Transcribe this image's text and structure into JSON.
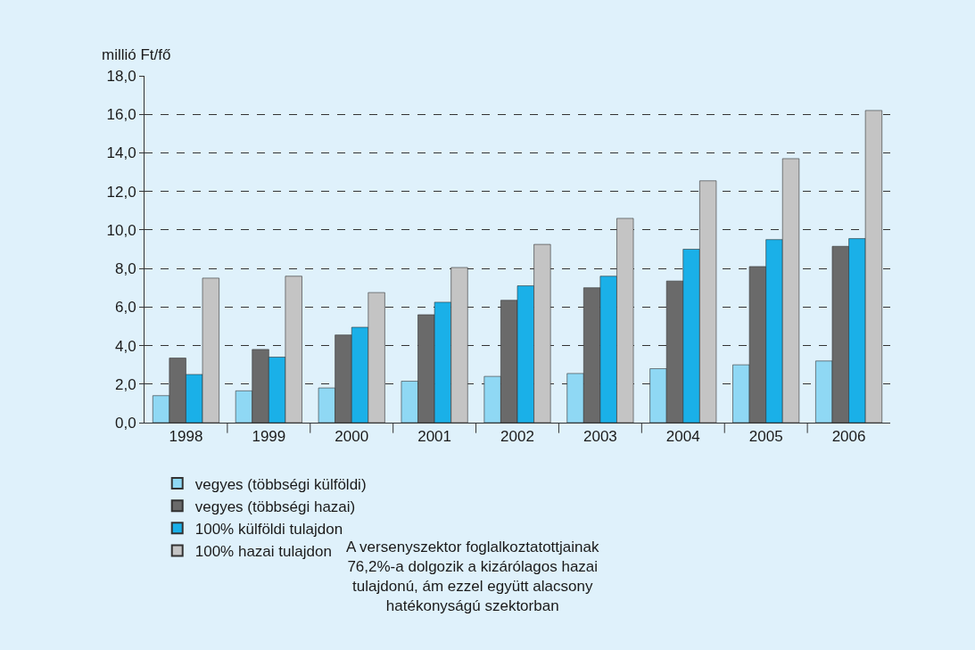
{
  "chart_data": {
    "type": "bar",
    "ylabel": "millió Ft/fő",
    "categories": [
      "1998",
      "1999",
      "2000",
      "2001",
      "2002",
      "2003",
      "2004",
      "2005",
      "2006"
    ],
    "series": [
      {
        "name": "vegyes (többségi külföldi)",
        "color": "#8fd8f4",
        "values": [
          1.4,
          1.65,
          1.8,
          2.15,
          2.4,
          2.55,
          2.8,
          3.0,
          3.2
        ]
      },
      {
        "name": "vegyes (többségi hazai)",
        "color": "#6a6a6a",
        "values": [
          3.35,
          3.8,
          4.55,
          5.6,
          6.35,
          7.0,
          7.35,
          8.1,
          9.15
        ]
      },
      {
        "name": "100% külföldi tulajdon",
        "color": "#1ab0e8",
        "values": [
          2.5,
          3.4,
          4.95,
          6.25,
          7.1,
          7.6,
          9.0,
          9.5,
          9.55
        ]
      },
      {
        "name": "100% hazai tulajdon",
        "color": "#c4c4c4",
        "values": [
          7.5,
          7.6,
          6.75,
          8.05,
          9.25,
          10.6,
          12.55,
          13.7,
          16.2
        ]
      }
    ],
    "ylim": [
      0,
      18
    ],
    "yticks": [
      {
        "value": 0,
        "label": "0,0"
      },
      {
        "value": 2,
        "label": "2,0"
      },
      {
        "value": 4,
        "label": "4,0"
      },
      {
        "value": 6,
        "label": "6,0"
      },
      {
        "value": 8,
        "label": "8,0"
      },
      {
        "value": 10,
        "label": "10,0"
      },
      {
        "value": 12,
        "label": "12,0"
      },
      {
        "value": 14,
        "label": "14,0"
      },
      {
        "value": 16,
        "label": "16,0"
      },
      {
        "value": 18,
        "label": "18,0"
      }
    ],
    "grid": "y",
    "legend": "bottom",
    "annotations": [
      "A versenyszektor foglalkoztatottjainak\n76,2%-a dolgozik a kizárólagos hazai\ntulajdonú, ám ezzel együtt alacsony\nhatékonyságú szektorban"
    ]
  }
}
